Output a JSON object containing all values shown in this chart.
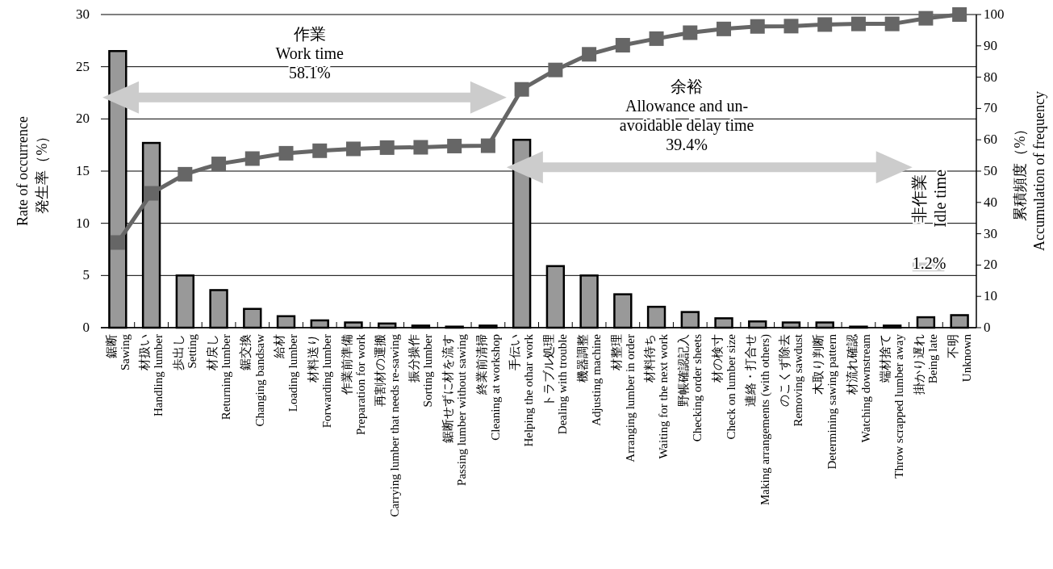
{
  "chart_data": {
    "type": "bar",
    "categories": [
      "鋸断\nSawing",
      "材扱い\nHandling lumber",
      "歩出し\nSetting",
      "材戻し\nReturning lumber",
      "鋸交換\nChanging bandsaw",
      "給材\nLoading lumber",
      "材料送り\nForwarding lumber",
      "作業前準備\nPreparation for work",
      "再割材の運搬\nCarrying lumber that needs re-sawing",
      "振分操作\nSorting lumber",
      "鋸断せずに材を流す\nPassing lumber without sawing",
      "終業前清掃\nCleaning at workshop",
      "手伝い\nHelping the othar work",
      "トラブル処理\nDealing with trouble",
      "機器調整\nAdjusting machine",
      "材整理\nArranging lumber in order",
      "材料待ち\nWaiting for the next work",
      "野帳確認記入\nChecking order sheets",
      "材の検寸\nCheck on lumber size",
      "連絡・打合せ\nMaking arrangements (with others)",
      "のこくず除去\nRemoving sawdust",
      "木取り判断\nDetermining sawing pattern",
      "材流れ確認\nWatching downstream",
      "端材捨て\nThrow scrapped lumber away",
      "掛かり遅れ\nBeing late",
      "不明\nUnknown"
    ],
    "series": [
      {
        "color": "#999999",
        "values": [
          26.5,
          17.7,
          5.0,
          3.6,
          1.8,
          1.1,
          0.7,
          0.5,
          0.4,
          0.2,
          0.1,
          0.2,
          18.0,
          5.9,
          5.0,
          3.2,
          2.0,
          1.5,
          0.9,
          0.6,
          0.5,
          0.5,
          0.1,
          0.2,
          1.0,
          1.2
        ]
      },
      {
        "type": "line",
        "axis": "y2",
        "color": "#666666",
        "values": [
          27.2,
          42.9,
          49.0,
          52.3,
          54.0,
          55.7,
          56.5,
          57.1,
          57.5,
          57.6,
          58.0,
          58.1,
          76.1,
          82.3,
          87.3,
          90.2,
          92.3,
          94.2,
          95.4,
          96.2,
          96.3,
          96.8,
          97.0,
          97.0,
          98.8,
          100
        ]
      }
    ],
    "marker": "square",
    "ylabel": "Rate of occurrence\n発生率（%）",
    "y2label": "累積頻度（%）\nAccumulation of frequency",
    "ylim": [
      0,
      30
    ],
    "yticks": [
      0,
      5,
      10,
      15,
      20,
      25,
      30
    ],
    "y2lim": [
      0,
      100
    ],
    "y2ticks": [
      0,
      10,
      20,
      30,
      40,
      50,
      60,
      70,
      80,
      90,
      100
    ],
    "grid": "y",
    "annotations": [
      "作業\nWork time\n58.1%",
      "余裕\nAllowance and un-\navoidable delay time\n39.4%",
      "非作業\nIdle time",
      "1.2%"
    ]
  }
}
